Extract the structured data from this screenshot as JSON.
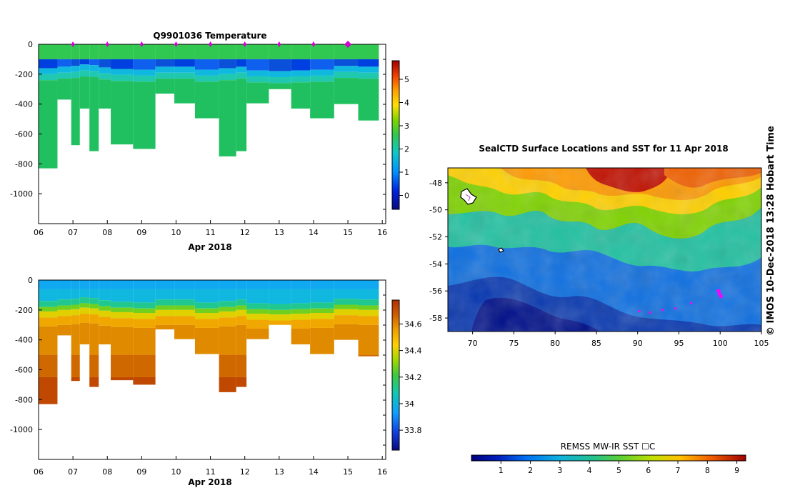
{
  "chart_data": [
    {
      "type": "heatmap",
      "title": "Q9901036  Temperature",
      "xlabel": "Apr 2018",
      "ylabel": "",
      "x_ticks": [
        "06",
        "07",
        "08",
        "09",
        "10",
        "11",
        "12",
        "13",
        "14",
        "15",
        "16"
      ],
      "y_ticks": [
        "0",
        "-200",
        "-400",
        "-600",
        "-800",
        "-1000"
      ],
      "xlim": [
        6,
        16.1
      ],
      "ylim": [
        -1200,
        0
      ],
      "colorbar_ticks": [
        "0",
        "1",
        "2",
        "3",
        "4",
        "5"
      ],
      "colorbar_range": [
        -0.6,
        5.8
      ],
      "profile_markers_days": [
        7,
        8,
        9,
        10,
        11,
        12,
        13,
        14,
        15
      ],
      "profiles": [
        {
          "t0": 6.0,
          "t1": 6.55,
          "max_depth": 830,
          "thermocline_depth": 160
        },
        {
          "t0": 6.55,
          "t1": 6.95,
          "max_depth": 370,
          "thermocline_depth": 150
        },
        {
          "t0": 6.95,
          "t1": 7.2,
          "max_depth": 675,
          "thermocline_depth": 145
        },
        {
          "t0": 7.2,
          "t1": 7.48,
          "max_depth": 430,
          "thermocline_depth": 135
        },
        {
          "t0": 7.48,
          "t1": 7.75,
          "max_depth": 715,
          "thermocline_depth": 140
        },
        {
          "t0": 7.75,
          "t1": 8.1,
          "max_depth": 430,
          "thermocline_depth": 155
        },
        {
          "t0": 8.1,
          "t1": 8.75,
          "max_depth": 670,
          "thermocline_depth": 165
        },
        {
          "t0": 8.75,
          "t1": 9.4,
          "max_depth": 700,
          "thermocline_depth": 170
        },
        {
          "t0": 9.4,
          "t1": 9.95,
          "max_depth": 330,
          "thermocline_depth": 150
        },
        {
          "t0": 9.95,
          "t1": 10.55,
          "max_depth": 395,
          "thermocline_depth": 150
        },
        {
          "t0": 10.55,
          "t1": 11.25,
          "max_depth": 495,
          "thermocline_depth": 170
        },
        {
          "t0": 11.25,
          "t1": 11.75,
          "max_depth": 750,
          "thermocline_depth": 160
        },
        {
          "t0": 11.75,
          "t1": 12.05,
          "max_depth": 715,
          "thermocline_depth": 150
        },
        {
          "t0": 12.05,
          "t1": 12.7,
          "max_depth": 395,
          "thermocline_depth": 175
        },
        {
          "t0": 12.7,
          "t1": 13.35,
          "max_depth": 300,
          "thermocline_depth": 180
        },
        {
          "t0": 13.35,
          "t1": 13.9,
          "max_depth": 430,
          "thermocline_depth": 175
        },
        {
          "t0": 13.9,
          "t1": 14.6,
          "max_depth": 495,
          "thermocline_depth": 170
        },
        {
          "t0": 14.6,
          "t1": 15.3,
          "max_depth": 400,
          "thermocline_depth": 145
        },
        {
          "t0": 15.3,
          "t1": 15.9,
          "max_depth": 510,
          "thermocline_depth": 150
        }
      ]
    },
    {
      "type": "heatmap",
      "title": "",
      "xlabel": "Apr 2018",
      "ylabel": "",
      "x_ticks": [
        "06",
        "07",
        "08",
        "09",
        "10",
        "11",
        "12",
        "13",
        "14",
        "15",
        "16"
      ],
      "y_ticks": [
        "0",
        "-200",
        "-400",
        "-600",
        "-800",
        "-1000"
      ],
      "xlim": [
        6,
        16.1
      ],
      "ylim": [
        -1200,
        0
      ],
      "colorbar_ticks": [
        "33.8",
        "34",
        "34.2",
        "34.4",
        "34.6"
      ],
      "colorbar_range": [
        33.65,
        34.78
      ],
      "profiles_note": "same profile times and depths as the temperature panel"
    },
    {
      "type": "heatmap",
      "title": "SealCTD Surface Locations and SST for 11 Apr 2018",
      "xlabel": "",
      "ylabel": "",
      "x_ticks": [
        "70",
        "75",
        "80",
        "85",
        "90",
        "95",
        "100",
        "105"
      ],
      "y_ticks": [
        "-48",
        "-50",
        "-52",
        "-54",
        "-56",
        "-58"
      ],
      "xlim": [
        67,
        105
      ],
      "ylim": [
        -59.0,
        -46.9
      ],
      "colorbar_label": "REMSS MW-IR SST ☐C",
      "colorbar_ticks": [
        "1",
        "2",
        "3",
        "4",
        "5",
        "6",
        "7",
        "8",
        "9"
      ],
      "colorbar_range": [
        0,
        9.3
      ],
      "surface_locations": [
        {
          "lon": 99.8,
          "lat": -56.0
        },
        {
          "lon": 99.9,
          "lat": -56.2
        },
        {
          "lon": 100.1,
          "lat": -56.4
        },
        {
          "lon": 96.5,
          "lat": -56.9
        },
        {
          "lon": 94.6,
          "lat": -57.3
        },
        {
          "lon": 93.0,
          "lat": -57.4
        },
        {
          "lon": 91.5,
          "lat": -57.6
        },
        {
          "lon": 90.2,
          "lat": -57.5
        }
      ]
    }
  ],
  "footer_text": "©  IMOS 10-Dec-2018 13:28 Hobart Time",
  "colors": {
    "profile_marker": "#d400d4",
    "seal_track": "#ff00ff"
  }
}
